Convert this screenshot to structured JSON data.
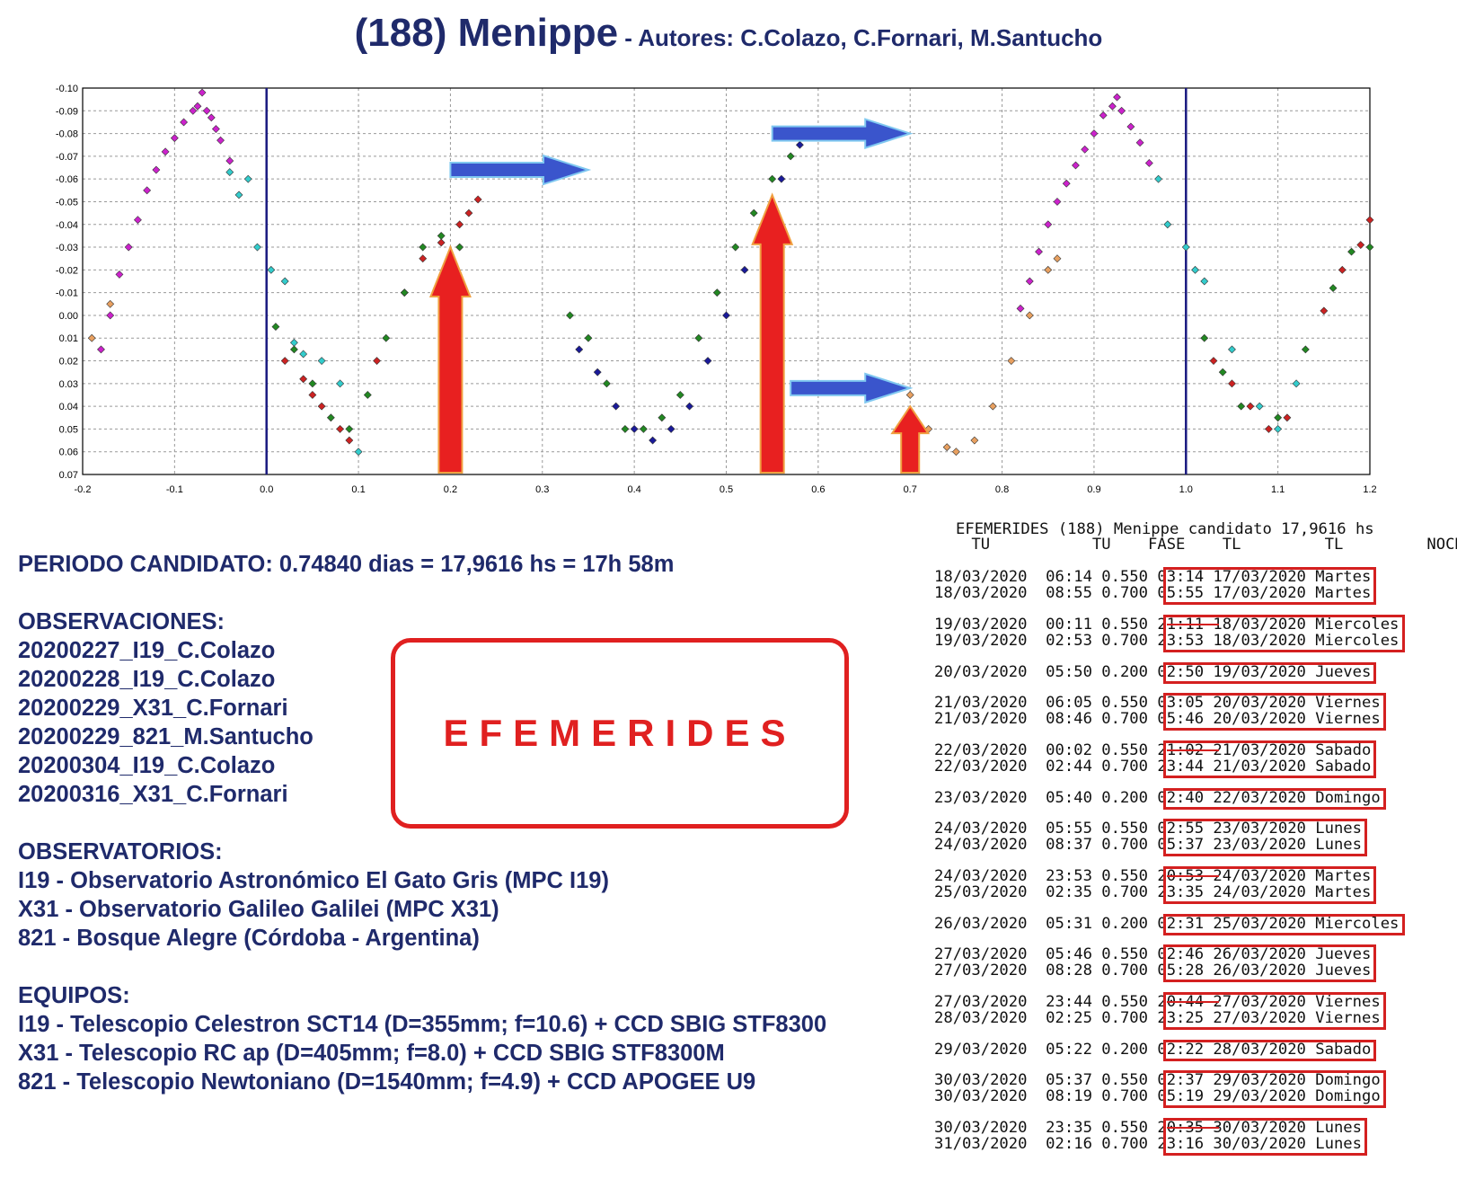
{
  "title": {
    "main": "(188) Menippe",
    "sub": " - Autores: C.Colazo, C.Fornari, M.Santucho"
  },
  "chart_data": {
    "type": "scatter",
    "title": "(188) Menippe",
    "xlim": [
      -0.2,
      1.2
    ],
    "ylim": [
      0.07,
      -0.1
    ],
    "x_ticks": [
      "-0.2",
      "-0.1",
      "0.0",
      "0.1",
      "0.2",
      "0.3",
      "0.4",
      "0.5",
      "0.6",
      "0.7",
      "0.8",
      "0.9",
      "1.0",
      "1.1",
      "1.2"
    ],
    "y_ticks": [
      "-0.10",
      "-0.09",
      "-0.08",
      "-0.07",
      "-0.06",
      "-0.05",
      "-0.04",
      "-0.03",
      "-0.02",
      "-0.01",
      "0.00",
      "0.01",
      "0.02",
      "0.03",
      "0.04",
      "0.05",
      "0.06",
      "0.07"
    ],
    "grid": true,
    "vertical_lines": [
      0.0,
      1.0
    ],
    "series": [
      {
        "color": "#cc22cc",
        "points": [
          [
            -0.18,
            0.015
          ],
          [
            -0.17,
            0.0
          ],
          [
            -0.16,
            -0.018
          ],
          [
            -0.15,
            -0.03
          ],
          [
            -0.14,
            -0.042
          ],
          [
            -0.13,
            -0.055
          ],
          [
            -0.12,
            -0.064
          ],
          [
            -0.11,
            -0.072
          ],
          [
            -0.1,
            -0.078
          ],
          [
            -0.09,
            -0.085
          ],
          [
            -0.08,
            -0.09
          ],
          [
            -0.075,
            -0.092
          ],
          [
            -0.07,
            -0.098
          ],
          [
            -0.065,
            -0.09
          ],
          [
            -0.06,
            -0.087
          ],
          [
            -0.055,
            -0.082
          ],
          [
            -0.05,
            -0.077
          ],
          [
            -0.04,
            -0.068
          ],
          [
            0.82,
            -0.003
          ],
          [
            0.83,
            -0.015
          ],
          [
            0.84,
            -0.028
          ],
          [
            0.85,
            -0.04
          ],
          [
            0.86,
            -0.05
          ],
          [
            0.87,
            -0.058
          ],
          [
            0.88,
            -0.066
          ],
          [
            0.89,
            -0.073
          ],
          [
            0.9,
            -0.08
          ],
          [
            0.91,
            -0.088
          ],
          [
            0.92,
            -0.092
          ],
          [
            0.925,
            -0.096
          ],
          [
            0.93,
            -0.09
          ],
          [
            0.94,
            -0.083
          ],
          [
            0.95,
            -0.076
          ],
          [
            0.96,
            -0.067
          ]
        ]
      },
      {
        "color": "#33cccc",
        "points": [
          [
            -0.04,
            -0.063
          ],
          [
            -0.03,
            -0.053
          ],
          [
            -0.02,
            -0.06
          ],
          [
            -0.01,
            -0.03
          ],
          [
            0.005,
            -0.02
          ],
          [
            0.02,
            -0.015
          ],
          [
            0.03,
            0.012
          ],
          [
            0.04,
            0.017
          ],
          [
            0.06,
            0.02
          ],
          [
            0.08,
            0.03
          ],
          [
            0.1,
            0.06
          ],
          [
            0.97,
            -0.06
          ],
          [
            0.98,
            -0.04
          ],
          [
            1.0,
            -0.03
          ],
          [
            1.01,
            -0.02
          ],
          [
            1.02,
            -0.015
          ],
          [
            1.05,
            0.015
          ],
          [
            1.08,
            0.04
          ],
          [
            1.1,
            0.05
          ],
          [
            1.12,
            0.03
          ]
        ]
      },
      {
        "color": "#cc2222",
        "points": [
          [
            0.02,
            0.02
          ],
          [
            0.04,
            0.028
          ],
          [
            0.05,
            0.035
          ],
          [
            0.06,
            0.04
          ],
          [
            0.08,
            0.05
          ],
          [
            0.09,
            0.055
          ],
          [
            0.12,
            0.02
          ],
          [
            0.15,
            -0.01
          ],
          [
            0.17,
            -0.025
          ],
          [
            0.19,
            -0.032
          ],
          [
            0.21,
            -0.04
          ],
          [
            0.22,
            -0.045
          ],
          [
            0.23,
            -0.051
          ],
          [
            1.03,
            0.02
          ],
          [
            1.05,
            0.03
          ],
          [
            1.07,
            0.04
          ],
          [
            1.09,
            0.05
          ],
          [
            1.11,
            0.045
          ],
          [
            1.15,
            -0.002
          ],
          [
            1.17,
            -0.02
          ],
          [
            1.19,
            -0.031
          ],
          [
            1.2,
            -0.042
          ]
        ]
      },
      {
        "color": "#228822",
        "points": [
          [
            0.01,
            0.005
          ],
          [
            0.03,
            0.015
          ],
          [
            0.05,
            0.03
          ],
          [
            0.07,
            0.045
          ],
          [
            0.09,
            0.05
          ],
          [
            0.11,
            0.035
          ],
          [
            0.13,
            0.01
          ],
          [
            0.15,
            -0.01
          ],
          [
            0.17,
            -0.03
          ],
          [
            0.19,
            -0.035
          ],
          [
            0.21,
            -0.03
          ],
          [
            0.33,
            0.0
          ],
          [
            0.35,
            0.01
          ],
          [
            0.37,
            0.03
          ],
          [
            0.39,
            0.05
          ],
          [
            0.41,
            0.05
          ],
          [
            0.43,
            0.045
          ],
          [
            0.45,
            0.035
          ],
          [
            0.47,
            0.01
          ],
          [
            0.49,
            -0.01
          ],
          [
            0.51,
            -0.03
          ],
          [
            0.53,
            -0.045
          ],
          [
            0.55,
            -0.06
          ],
          [
            0.57,
            -0.07
          ],
          [
            1.02,
            0.01
          ],
          [
            1.04,
            0.025
          ],
          [
            1.06,
            0.04
          ],
          [
            1.1,
            0.045
          ],
          [
            1.13,
            0.015
          ],
          [
            1.16,
            -0.012
          ],
          [
            1.18,
            -0.028
          ],
          [
            1.2,
            -0.03
          ]
        ]
      },
      {
        "color": "#1a1a99",
        "points": [
          [
            0.34,
            0.015
          ],
          [
            0.36,
            0.025
          ],
          [
            0.38,
            0.04
          ],
          [
            0.4,
            0.05
          ],
          [
            0.42,
            0.055
          ],
          [
            0.44,
            0.05
          ],
          [
            0.46,
            0.04
          ],
          [
            0.48,
            0.02
          ],
          [
            0.5,
            0.0
          ],
          [
            0.52,
            -0.02
          ],
          [
            0.54,
            -0.04
          ],
          [
            0.56,
            -0.06
          ],
          [
            0.58,
            -0.075
          ]
        ]
      },
      {
        "color": "#e8a060",
        "points": [
          [
            -0.19,
            0.01
          ],
          [
            -0.17,
            -0.005
          ],
          [
            0.7,
            0.035
          ],
          [
            0.72,
            0.05
          ],
          [
            0.74,
            0.058
          ],
          [
            0.75,
            0.06
          ],
          [
            0.77,
            0.055
          ],
          [
            0.79,
            0.04
          ],
          [
            0.81,
            0.02
          ],
          [
            0.83,
            0.0
          ],
          [
            0.85,
            -0.02
          ],
          [
            0.86,
            -0.025
          ]
        ]
      }
    ],
    "annotations": {
      "arrow_up_color": "#e82020",
      "arrow_right_color": "#3a55cc",
      "arrows_up_x": [
        0.2,
        0.55,
        0.7
      ],
      "arrows_right": [
        {
          "x0": 0.2,
          "x1": 0.35,
          "y": -0.064
        },
        {
          "x0": 0.55,
          "x1": 0.7,
          "y": -0.08
        },
        {
          "x0": 0.57,
          "x1": 0.7,
          "y": 0.032
        }
      ]
    }
  },
  "info": {
    "periodo": "PERIODO CANDIDATO: 0.74840 dias = 17,9616 hs = 17h 58m",
    "obs_heading": "OBSERVACIONES:",
    "obs": [
      "20200227_I19_C.Colazo",
      "20200228_I19_C.Colazo",
      "20200229_X31_C.Fornari",
      "20200229_821_M.Santucho",
      "20200304_I19_C.Colazo",
      "20200316_X31_C.Fornari"
    ],
    "observatorios_heading": "OBSERVATORIOS:",
    "observatorios": [
      "I19 - Observatorio Astronómico El Gato Gris (MPC I19)",
      "X31 - Observatorio Galileo Galilei (MPC X31)",
      "821 - Bosque Alegre (Córdoba - Argentina)"
    ],
    "equipos_heading": "EQUIPOS:",
    "equipos": [
      "I19 - Telescopio Celestron SCT14 (D=355mm; f=10.6) + CCD SBIG STF8300",
      "X31 - Telescopio RC ap (D=405mm; f=8.0) + CCD SBIG STF8300M",
      "821 - Telescopio  Newtoniano (D=1540mm; f=4.9) + CCD APOGEE U9"
    ]
  },
  "efe_label": "EFEMERIDES",
  "ephemeris": {
    "title": "EFEMERIDES (188) Menippe candidato 17,9616 hs",
    "header": "    TU           TU    FASE    TL         TL         NOCHE DEL",
    "groups": [
      [
        "18/03/2020  06:14 0.550 03:14 17/03/2020 Martes",
        "18/03/2020  08:55 0.700 05:55 17/03/2020 Martes"
      ],
      [
        "19/03/2020  00:11 0.550 21:11 18/03/2020 Miercoles",
        "19/03/2020  02:53 0.700 23:53 18/03/2020 Miercoles"
      ],
      [
        "20/03/2020  05:50 0.200 02:50 19/03/2020 Jueves"
      ],
      [
        "21/03/2020  06:05 0.550 03:05 20/03/2020 Viernes",
        "21/03/2020  08:46 0.700 05:46 20/03/2020 Viernes"
      ],
      [
        "22/03/2020  00:02 0.550 21:02 21/03/2020 Sabado",
        "22/03/2020  02:44 0.700 23:44 21/03/2020 Sabado"
      ],
      [
        "23/03/2020  05:40 0.200 02:40 22/03/2020 Domingo"
      ],
      [
        "24/03/2020  05:55 0.550 02:55 23/03/2020 Lunes",
        "24/03/2020  08:37 0.700 05:37 23/03/2020 Lunes"
      ],
      [
        "24/03/2020  23:53 0.550 20:53 24/03/2020 Martes",
        "25/03/2020  02:35 0.700 23:35 24/03/2020 Martes"
      ],
      [
        "26/03/2020  05:31 0.200 02:31 25/03/2020 Miercoles"
      ],
      [
        "27/03/2020  05:46 0.550 02:46 26/03/2020 Jueves",
        "27/03/2020  08:28 0.700 05:28 26/03/2020 Jueves"
      ],
      [
        "27/03/2020  23:44 0.550 20:44 27/03/2020 Viernes",
        "28/03/2020  02:25 0.700 23:25 27/03/2020 Viernes"
      ],
      [
        "29/03/2020  05:22 0.200 02:22 28/03/2020 Sabado"
      ],
      [
        "30/03/2020  05:37 0.550 02:37 29/03/2020 Domingo",
        "30/03/2020  08:19 0.700 05:19 29/03/2020 Domingo"
      ],
      [
        "30/03/2020  23:35 0.550 20:35 30/03/2020 Lunes",
        "31/03/2020  02:16 0.700 23:16 30/03/2020 Lunes"
      ]
    ],
    "struck_groups": [
      1,
      4,
      7,
      10,
      13
    ]
  }
}
